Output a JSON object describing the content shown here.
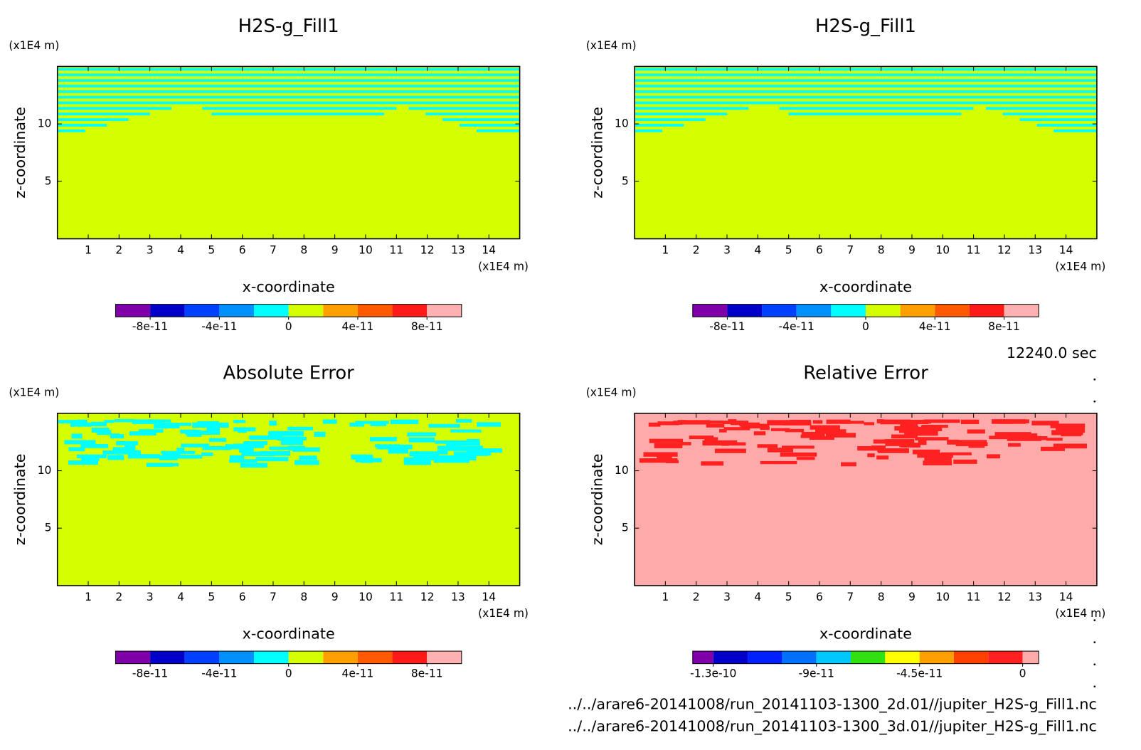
{
  "chart_data": [
    {
      "type": "contour",
      "title": "H2S-g_Fill1",
      "ylabel": "z-coordinate",
      "xlabel": "x-coordinate",
      "y_unit": "(x1E4 m)",
      "x_unit": "(x1E4 m)",
      "xlim": [
        0,
        15
      ],
      "ylim": [
        0,
        15
      ],
      "xticks": [
        1,
        2,
        3,
        4,
        5,
        6,
        7,
        8,
        9,
        10,
        11,
        12,
        13,
        14
      ],
      "yticks": [
        5,
        10
      ],
      "colorbar": {
        "levels": [
          -1e-10,
          -8e-11,
          -6e-11,
          -4e-11,
          -2e-11,
          0,
          2e-11,
          4e-11,
          6e-11,
          8e-11,
          1e-10
        ],
        "colors": [
          "#7f00a8",
          "#0000c8",
          "#0040ff",
          "#0090ff",
          "#00ffff",
          "#d4ff00",
          "#ffa000",
          "#ff5a00",
          "#ff1a1a",
          "#ffb0b0"
        ],
        "ticks": [
          -8e-11,
          -4e-11,
          0,
          4e-11,
          8e-11
        ]
      }
    },
    {
      "type": "contour",
      "title": "H2S-g_Fill1",
      "ylabel": "z-coordinate",
      "xlabel": "x-coordinate",
      "y_unit": "(x1E4 m)",
      "x_unit": "(x1E4 m)",
      "xlim": [
        0,
        15
      ],
      "ylim": [
        0,
        15
      ],
      "xticks": [
        1,
        2,
        3,
        4,
        5,
        6,
        7,
        8,
        9,
        10,
        11,
        12,
        13,
        14
      ],
      "yticks": [
        5,
        10
      ],
      "colorbar": {
        "levels": [
          -1e-10,
          -8e-11,
          -6e-11,
          -4e-11,
          -2e-11,
          0,
          2e-11,
          4e-11,
          6e-11,
          8e-11,
          1e-10
        ],
        "colors": [
          "#7f00a8",
          "#0000c8",
          "#0040ff",
          "#0090ff",
          "#00ffff",
          "#d4ff00",
          "#ffa000",
          "#ff5a00",
          "#ff1a1a",
          "#ffb0b0"
        ],
        "ticks": [
          -8e-11,
          -4e-11,
          0,
          4e-11,
          8e-11
        ]
      }
    },
    {
      "type": "contour",
      "title": "Absolute Error",
      "ylabel": "z-coordinate",
      "xlabel": "x-coordinate",
      "y_unit": "(x1E4 m)",
      "x_unit": "(x1E4 m)",
      "xlim": [
        0,
        15
      ],
      "ylim": [
        0,
        15
      ],
      "xticks": [
        1,
        2,
        3,
        4,
        5,
        6,
        7,
        8,
        9,
        10,
        11,
        12,
        13,
        14
      ],
      "yticks": [
        5,
        10
      ],
      "colorbar": {
        "levels": [
          -1e-10,
          -8e-11,
          -6e-11,
          -4e-11,
          -2e-11,
          0,
          2e-11,
          4e-11,
          6e-11,
          8e-11,
          1e-10
        ],
        "colors": [
          "#7f00a8",
          "#0000c8",
          "#0040ff",
          "#0090ff",
          "#00ffff",
          "#d4ff00",
          "#ffa000",
          "#ff5a00",
          "#ff1a1a",
          "#ffb0b0"
        ],
        "ticks": [
          -8e-11,
          -4e-11,
          0,
          4e-11,
          8e-11
        ]
      }
    },
    {
      "type": "contour",
      "title": "Relative Error",
      "ylabel": "z-coordinate",
      "xlabel": "x-coordinate",
      "y_unit": "(x1E4 m)",
      "x_unit": "(x1E4 m)",
      "xlim": [
        0,
        15
      ],
      "ylim": [
        0,
        15
      ],
      "xticks": [
        1,
        2,
        3,
        4,
        5,
        6,
        7,
        8,
        9,
        10,
        11,
        12,
        13,
        14
      ],
      "yticks": [
        5,
        10
      ],
      "colorbar": {
        "levels": [
          -1.44e-10,
          -1.35e-10,
          -1.2e-10,
          -1.05e-10,
          -9e-11,
          -7.5e-11,
          -6e-11,
          -4.5e-11,
          -3e-11,
          -1.5e-11,
          0,
          7e-12
        ],
        "colors": [
          "#7f00a8",
          "#0000c8",
          "#0020ff",
          "#0070ff",
          "#00c8ff",
          "#30e010",
          "#ffff00",
          "#ffa000",
          "#ff4000",
          "#ff2020",
          "#ffaaaa"
        ],
        "ticks": [
          {
            "value": -1.35e-10,
            "label": "-1.3e-10"
          },
          -9e-11,
          -4.5e-11,
          0
        ]
      }
    }
  ],
  "time_label": "12240.0 sec",
  "files": [
    "../../arare6-20141008/run_20141103-1300_2d.01//jupiter_H2S-g_Fill1.nc",
    "../../arare6-20141008/run_20141103-1300_3d.01//jupiter_H2S-g_Fill1.nc"
  ]
}
